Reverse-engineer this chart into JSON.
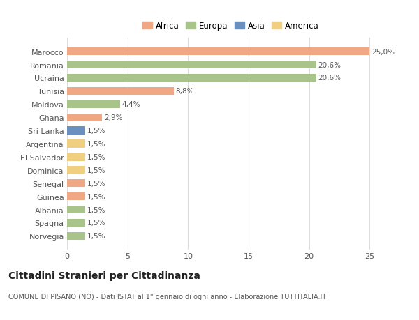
{
  "categories": [
    "Marocco",
    "Romania",
    "Ucraina",
    "Tunisia",
    "Moldova",
    "Ghana",
    "Sri Lanka",
    "Argentina",
    "El Salvador",
    "Dominica",
    "Senegal",
    "Guinea",
    "Albania",
    "Spagna",
    "Norvegia"
  ],
  "values": [
    25.0,
    20.6,
    20.6,
    8.8,
    4.4,
    2.9,
    1.5,
    1.5,
    1.5,
    1.5,
    1.5,
    1.5,
    1.5,
    1.5,
    1.5
  ],
  "continents": [
    "Africa",
    "Europa",
    "Europa",
    "Africa",
    "Europa",
    "Africa",
    "Asia",
    "America",
    "America",
    "America",
    "Africa",
    "Africa",
    "Europa",
    "Europa",
    "Europa"
  ],
  "colors": {
    "Africa": "#F0A884",
    "Europa": "#A8C48A",
    "Asia": "#6B8FBF",
    "America": "#F0D080"
  },
  "labels": [
    "25,0%",
    "20,6%",
    "20,6%",
    "8,8%",
    "4,4%",
    "2,9%",
    "1,5%",
    "1,5%",
    "1,5%",
    "1,5%",
    "1,5%",
    "1,5%",
    "1,5%",
    "1,5%",
    "1,5%"
  ],
  "xlim": [
    0,
    27.0
  ],
  "xticks": [
    0,
    5,
    10,
    15,
    20,
    25
  ],
  "title": "Cittadini Stranieri per Cittadinanza",
  "subtitle": "COMUNE DI PISANO (NO) - Dati ISTAT al 1° gennaio di ogni anno - Elaborazione TUTTITALIA.IT",
  "background_color": "#ffffff",
  "grid_color": "#dddddd",
  "bar_height": 0.6,
  "label_fontsize": 7.5,
  "tick_fontsize": 8,
  "title_fontsize": 10,
  "subtitle_fontsize": 7,
  "legend_labels": [
    "Africa",
    "Europa",
    "Asia",
    "America"
  ],
  "legend_colors": [
    "#F0A884",
    "#A8C48A",
    "#6B8FBF",
    "#F0D080"
  ]
}
